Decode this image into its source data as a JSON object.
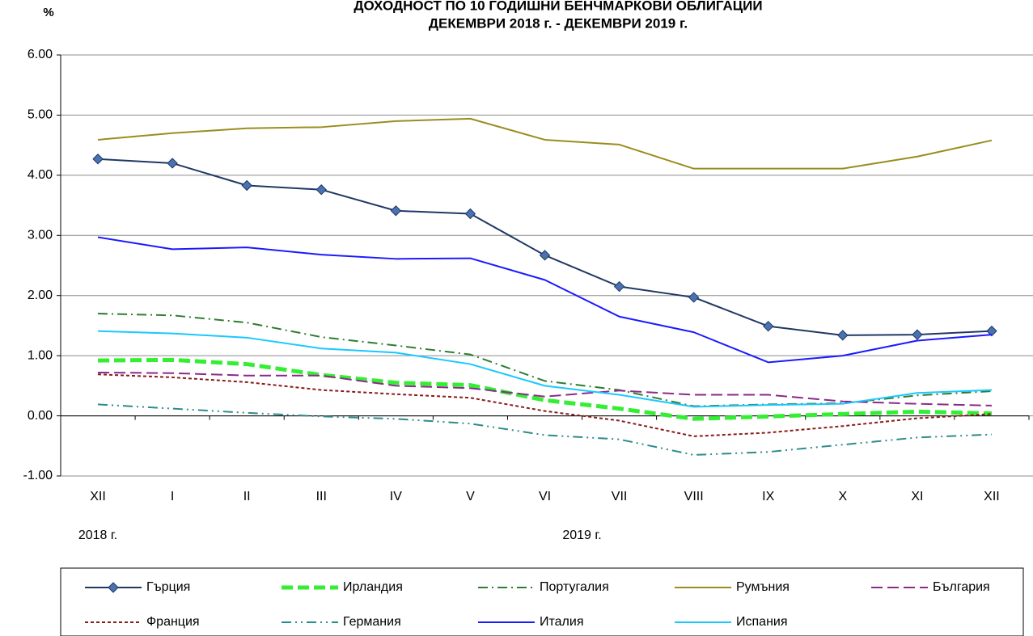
{
  "chart_data": {
    "type": "line",
    "title": "ДОХОДНОСТ ПО 10 ГОДИШНИ БЕНЧМАРКОВИ ОБЛИГАЦИИ",
    "subtitle": "ДЕКЕМВРИ 2018 г. - ДЕКЕМВРИ 2019 г.",
    "y_label": "%",
    "year_labels": [
      "2018 г.",
      "2019 г."
    ],
    "categories": [
      "XII",
      "I",
      "II",
      "III",
      "IV",
      "V",
      "VI",
      "VII",
      "VIII",
      "IX",
      "X",
      "XI",
      "XII"
    ],
    "ylim": [
      -1,
      6
    ],
    "yticks": [
      {
        "value": -1,
        "label": "-1.00"
      },
      {
        "value": 0,
        "label": "0.00"
      },
      {
        "value": 1,
        "label": "1.00"
      },
      {
        "value": 2,
        "label": "2.00"
      },
      {
        "value": 3,
        "label": "3.00"
      },
      {
        "value": 4,
        "label": "4.00"
      },
      {
        "value": 5,
        "label": "5.00"
      },
      {
        "value": 6,
        "label": "6.00"
      }
    ],
    "grid": true,
    "legend": "bottom",
    "series": [
      {
        "name": "Гърция",
        "color": "#1f3864",
        "dash": "solid",
        "width": 2,
        "marker": "diamond",
        "values": [
          4.27,
          4.2,
          3.83,
          3.76,
          3.41,
          3.36,
          2.67,
          2.15,
          1.97,
          1.49,
          1.34,
          1.35,
          1.41
        ]
      },
      {
        "name": "Ирландия",
        "color": "#33ee33",
        "dash": "dashed",
        "width": 5,
        "values": [
          0.92,
          0.93,
          0.86,
          0.68,
          0.55,
          0.51,
          0.26,
          0.12,
          -0.05,
          -0.01,
          0.03,
          0.07,
          0.04
        ]
      },
      {
        "name": "Португалия",
        "color": "#2e7d32",
        "dash": "dashdot",
        "width": 2,
        "values": [
          1.7,
          1.67,
          1.55,
          1.31,
          1.17,
          1.02,
          0.58,
          0.43,
          0.16,
          0.19,
          0.21,
          0.34,
          0.41
        ]
      },
      {
        "name": "Румъния",
        "color": "#9a8d1e",
        "dash": "solid",
        "width": 2,
        "values": [
          4.59,
          4.7,
          4.78,
          4.8,
          4.9,
          4.94,
          4.59,
          4.51,
          4.11,
          4.11,
          4.11,
          4.31,
          4.58
        ]
      },
      {
        "name": "България",
        "color": "#8b2a8b",
        "dash": "dashed",
        "width": 2,
        "values": [
          0.72,
          0.71,
          0.67,
          0.67,
          0.5,
          0.46,
          0.32,
          0.42,
          0.35,
          0.35,
          0.24,
          0.2,
          0.17
        ]
      },
      {
        "name": "Франция",
        "color": "#8b1a1a",
        "dash": "dotted",
        "width": 2,
        "values": [
          0.69,
          0.64,
          0.56,
          0.43,
          0.36,
          0.3,
          0.08,
          -0.08,
          -0.34,
          -0.28,
          -0.17,
          -0.04,
          0.03
        ]
      },
      {
        "name": "Германия",
        "color": "#2e8b8b",
        "dash": "dashdotdot",
        "width": 2,
        "values": [
          0.19,
          0.12,
          0.05,
          -0.01,
          -0.05,
          -0.13,
          -0.32,
          -0.39,
          -0.65,
          -0.6,
          -0.48,
          -0.36,
          -0.31
        ]
      },
      {
        "name": "Италия",
        "color": "#1a1aff",
        "dash": "solid",
        "width": 2,
        "values": [
          2.97,
          2.77,
          2.8,
          2.68,
          2.61,
          2.62,
          2.26,
          1.65,
          1.39,
          0.89,
          1.0,
          1.25,
          1.35
        ]
      },
      {
        "name": "Испания",
        "color": "#1ac8ff",
        "dash": "solid",
        "width": 2,
        "values": [
          1.41,
          1.37,
          1.3,
          1.12,
          1.05,
          0.86,
          0.5,
          0.35,
          0.15,
          0.18,
          0.2,
          0.38,
          0.43
        ]
      }
    ]
  }
}
